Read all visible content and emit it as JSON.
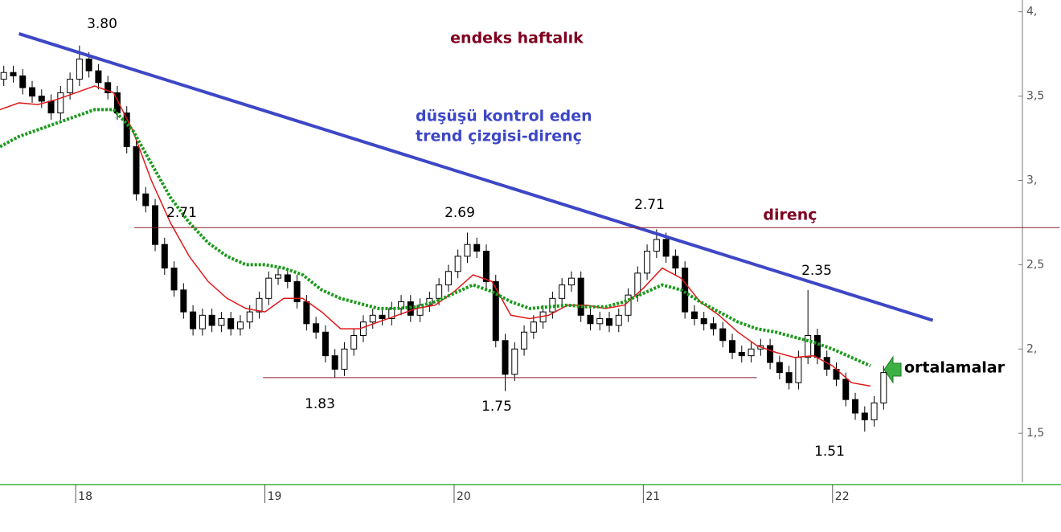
{
  "chart_data": {
    "type": "candlestick",
    "title": "endeks haftalık",
    "xlim": [
      17.6,
      22.91
    ],
    "ylim": [
      1.21,
      4.07
    ],
    "xticks": [
      18,
      19,
      20,
      21,
      22
    ],
    "yticks": [
      {
        "value": 4,
        "label": "4,"
      },
      {
        "value": 3.5,
        "label": "3,5"
      },
      {
        "value": 3,
        "label": "3,"
      },
      {
        "value": 2.5,
        "label": "2,5"
      },
      {
        "value": 2,
        "label": "2,"
      },
      {
        "value": 1.5,
        "label": "1,5"
      }
    ],
    "x": [
      17.62,
      17.67,
      17.72,
      17.77,
      17.82,
      17.87,
      17.92,
      17.97,
      18.02,
      18.07,
      18.12,
      18.17,
      18.22,
      18.27,
      18.32,
      18.37,
      18.42,
      18.47,
      18.52,
      18.57,
      18.62,
      18.67,
      18.72,
      18.77,
      18.82,
      18.87,
      18.92,
      18.97,
      19.02,
      19.07,
      19.12,
      19.17,
      19.22,
      19.27,
      19.32,
      19.37,
      19.42,
      19.47,
      19.52,
      19.57,
      19.62,
      19.67,
      19.72,
      19.77,
      19.82,
      19.87,
      19.92,
      19.97,
      20.02,
      20.07,
      20.12,
      20.17,
      20.22,
      20.27,
      20.32,
      20.37,
      20.42,
      20.47,
      20.52,
      20.57,
      20.62,
      20.67,
      20.72,
      20.77,
      20.82,
      20.87,
      20.92,
      20.97,
      21.02,
      21.07,
      21.12,
      21.17,
      21.22,
      21.27,
      21.32,
      21.37,
      21.42,
      21.47,
      21.52,
      21.57,
      21.62,
      21.67,
      21.72,
      21.77,
      21.82,
      21.87,
      21.92,
      21.97,
      22.02,
      22.07,
      22.12,
      22.17,
      22.22,
      22.27
    ],
    "open": [
      3.6,
      3.64,
      3.62,
      3.55,
      3.5,
      3.47,
      3.4,
      3.52,
      3.6,
      3.72,
      3.65,
      3.58,
      3.52,
      3.4,
      3.2,
      2.92,
      2.85,
      2.62,
      2.48,
      2.35,
      2.22,
      2.12,
      2.2,
      2.14,
      2.18,
      2.12,
      2.16,
      2.22,
      2.3,
      2.42,
      2.44,
      2.4,
      2.28,
      2.15,
      2.1,
      1.96,
      1.88,
      2.0,
      2.08,
      2.16,
      2.2,
      2.18,
      2.24,
      2.28,
      2.2,
      2.26,
      2.3,
      2.38,
      2.46,
      2.55,
      2.62,
      2.58,
      2.4,
      2.05,
      1.85,
      2.0,
      2.1,
      2.16,
      2.22,
      2.3,
      2.38,
      2.42,
      2.2,
      2.15,
      2.18,
      2.14,
      2.2,
      2.32,
      2.45,
      2.58,
      2.65,
      2.55,
      2.48,
      2.22,
      2.18,
      2.15,
      2.12,
      2.05,
      1.98,
      1.96,
      2.0,
      2.02,
      1.92,
      1.86,
      1.8,
      1.95,
      2.08,
      1.95,
      1.88,
      1.82,
      1.7,
      1.62,
      1.58,
      1.68
    ],
    "high": [
      3.68,
      3.68,
      3.66,
      3.59,
      3.54,
      3.51,
      3.56,
      3.64,
      3.8,
      3.76,
      3.69,
      3.62,
      3.56,
      3.44,
      3.24,
      2.96,
      2.89,
      2.66,
      2.52,
      2.39,
      2.26,
      2.24,
      2.24,
      2.22,
      2.22,
      2.2,
      2.26,
      2.34,
      2.46,
      2.48,
      2.48,
      2.44,
      2.32,
      2.19,
      2.14,
      2.0,
      2.04,
      2.12,
      2.2,
      2.24,
      2.24,
      2.28,
      2.32,
      2.32,
      2.3,
      2.34,
      2.42,
      2.5,
      2.59,
      2.69,
      2.66,
      2.62,
      2.44,
      2.09,
      2.04,
      2.14,
      2.2,
      2.26,
      2.34,
      2.42,
      2.46,
      2.46,
      2.24,
      2.22,
      2.22,
      2.24,
      2.36,
      2.49,
      2.62,
      2.71,
      2.69,
      2.59,
      2.52,
      2.26,
      2.22,
      2.19,
      2.16,
      2.09,
      2.02,
      2.04,
      2.06,
      2.06,
      1.96,
      1.9,
      1.99,
      2.35,
      2.12,
      1.99,
      1.92,
      1.86,
      1.74,
      1.66,
      1.72,
      1.9
    ],
    "low": [
      3.56,
      3.58,
      3.51,
      3.46,
      3.43,
      3.36,
      3.36,
      3.48,
      3.56,
      3.61,
      3.54,
      3.48,
      3.36,
      3.16,
      2.88,
      2.81,
      2.58,
      2.44,
      2.31,
      2.18,
      2.08,
      2.08,
      2.1,
      2.1,
      2.08,
      2.08,
      2.12,
      2.18,
      2.26,
      2.38,
      2.36,
      2.24,
      2.11,
      2.06,
      1.92,
      1.83,
      1.84,
      1.96,
      2.04,
      2.12,
      2.14,
      2.14,
      2.2,
      2.16,
      2.16,
      2.22,
      2.26,
      2.34,
      2.42,
      2.51,
      2.54,
      2.36,
      2.01,
      1.75,
      1.81,
      1.96,
      2.06,
      2.12,
      2.18,
      2.26,
      2.34,
      2.16,
      2.11,
      2.11,
      2.1,
      2.1,
      2.16,
      2.28,
      2.41,
      2.54,
      2.51,
      2.44,
      2.18,
      2.14,
      2.11,
      2.08,
      2.01,
      1.94,
      1.92,
      1.92,
      1.96,
      1.88,
      1.82,
      1.76,
      1.76,
      1.91,
      1.91,
      1.84,
      1.78,
      1.66,
      1.58,
      1.51,
      1.54,
      1.64
    ],
    "close": [
      3.64,
      3.62,
      3.55,
      3.5,
      3.47,
      3.4,
      3.52,
      3.6,
      3.72,
      3.65,
      3.58,
      3.52,
      3.4,
      3.2,
      2.92,
      2.85,
      2.62,
      2.48,
      2.35,
      2.22,
      2.12,
      2.2,
      2.14,
      2.18,
      2.12,
      2.16,
      2.22,
      2.3,
      2.42,
      2.44,
      2.4,
      2.28,
      2.15,
      2.1,
      1.96,
      1.88,
      2.0,
      2.08,
      2.16,
      2.2,
      2.18,
      2.24,
      2.28,
      2.2,
      2.26,
      2.3,
      2.38,
      2.46,
      2.55,
      2.62,
      2.58,
      2.4,
      2.05,
      1.85,
      2.0,
      2.1,
      2.16,
      2.22,
      2.3,
      2.38,
      2.42,
      2.2,
      2.15,
      2.18,
      2.14,
      2.2,
      2.32,
      2.45,
      2.58,
      2.65,
      2.55,
      2.48,
      2.22,
      2.18,
      2.15,
      2.12,
      2.05,
      1.98,
      1.96,
      2.0,
      2.02,
      1.92,
      1.86,
      1.8,
      1.95,
      2.08,
      1.95,
      1.88,
      1.82,
      1.7,
      1.62,
      1.58,
      1.68,
      1.86
    ],
    "moving_averages": [
      {
        "color": "#e01818",
        "style": "solid",
        "x": [
          17.6,
          17.7,
          17.8,
          17.9,
          18.0,
          18.1,
          18.2,
          18.3,
          18.4,
          18.5,
          18.6,
          18.7,
          18.8,
          18.9,
          19.0,
          19.1,
          19.2,
          19.3,
          19.4,
          19.5,
          19.6,
          19.7,
          19.8,
          19.9,
          20.0,
          20.1,
          20.2,
          20.3,
          20.4,
          20.5,
          20.6,
          20.7,
          20.8,
          20.9,
          21.0,
          21.1,
          21.2,
          21.3,
          21.4,
          21.5,
          21.6,
          21.7,
          21.8,
          21.9,
          22.0,
          22.1,
          22.2
        ],
        "values": [
          3.42,
          3.46,
          3.45,
          3.48,
          3.52,
          3.56,
          3.52,
          3.3,
          3.0,
          2.75,
          2.55,
          2.4,
          2.3,
          2.24,
          2.22,
          2.3,
          2.3,
          2.22,
          2.12,
          2.12,
          2.16,
          2.2,
          2.24,
          2.26,
          2.34,
          2.44,
          2.4,
          2.2,
          2.18,
          2.2,
          2.26,
          2.26,
          2.24,
          2.26,
          2.36,
          2.48,
          2.42,
          2.28,
          2.2,
          2.1,
          2.02,
          1.98,
          1.95,
          1.96,
          1.9,
          1.8,
          1.78
        ]
      },
      {
        "color": "#1a9a1a",
        "style": "dotted",
        "x": [
          17.6,
          17.7,
          17.8,
          17.9,
          18.0,
          18.1,
          18.2,
          18.3,
          18.4,
          18.5,
          18.6,
          18.7,
          18.8,
          18.9,
          19.0,
          19.1,
          19.2,
          19.3,
          19.4,
          19.5,
          19.6,
          19.7,
          19.8,
          19.9,
          20.0,
          20.1,
          20.2,
          20.3,
          20.4,
          20.5,
          20.6,
          20.7,
          20.8,
          20.9,
          21.0,
          21.1,
          21.2,
          21.3,
          21.4,
          21.5,
          21.6,
          21.7,
          21.8,
          21.9,
          22.0,
          22.1,
          22.2
        ],
        "values": [
          3.2,
          3.26,
          3.3,
          3.34,
          3.38,
          3.42,
          3.42,
          3.3,
          3.1,
          2.9,
          2.75,
          2.63,
          2.55,
          2.5,
          2.5,
          2.48,
          2.44,
          2.35,
          2.3,
          2.27,
          2.24,
          2.24,
          2.25,
          2.28,
          2.33,
          2.38,
          2.34,
          2.28,
          2.24,
          2.25,
          2.26,
          2.25,
          2.25,
          2.28,
          2.33,
          2.38,
          2.35,
          2.28,
          2.22,
          2.16,
          2.12,
          2.1,
          2.07,
          2.04,
          2.0,
          1.95,
          1.9
        ]
      }
    ],
    "lines": [
      {
        "x": [
          17.7,
          22.53
        ],
        "y": [
          3.87,
          2.17
        ],
        "color": "#3d47c6",
        "width": 4
      },
      {
        "x": [
          18.31,
          23.2
        ],
        "y": [
          2.72,
          2.72
        ],
        "color": "#8b1a2a",
        "width": 1
      },
      {
        "x": [
          18.99,
          21.6
        ],
        "y": [
          1.83,
          1.83
        ],
        "color": "#8b1a2a",
        "width": 1
      }
    ],
    "annotations": [
      {
        "text": "3.80",
        "color": "#000000"
      },
      {
        "text": "düşüşü kontrol eden",
        "color": "#3d47c6"
      },
      {
        "text": "trend çizgisi-direnç",
        "color": "#3d47c6"
      },
      {
        "text": "2.71",
        "color": "#000000"
      },
      {
        "text": "2.69",
        "color": "#000000"
      },
      {
        "text": "2.71",
        "color": "#000000"
      },
      {
        "text": "direnç",
        "color": "#800020"
      },
      {
        "text": "2.35",
        "color": "#000000"
      },
      {
        "text": "1.83",
        "color": "#000000"
      },
      {
        "text": "1.75",
        "color": "#000000"
      },
      {
        "text": "1.51",
        "color": "#000000"
      },
      {
        "text": "ortalamalar",
        "color": "#000000"
      }
    ],
    "title_color": "#800020",
    "axis_color": "#3cb043"
  }
}
